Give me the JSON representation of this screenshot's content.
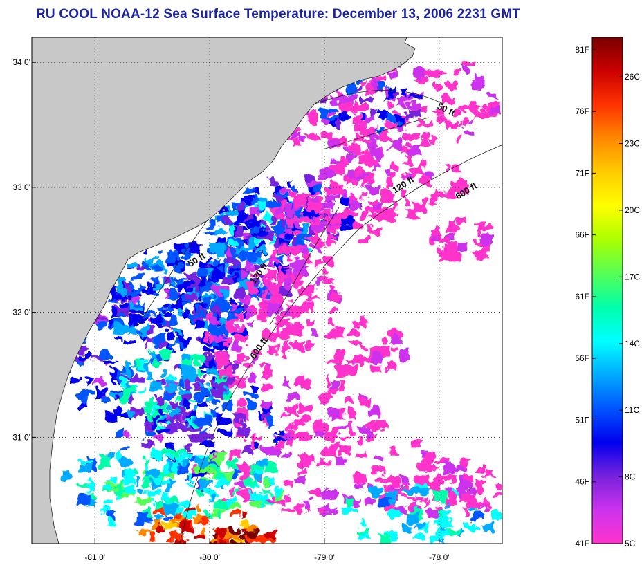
{
  "title": "RU COOL  NOAA-12  Sea Surface Temperature:  December 13, 2006 2231 GMT",
  "map": {
    "lon_range": [
      -81.55,
      -77.45
    ],
    "lat_range": [
      30.15,
      34.2
    ],
    "lat_ticks": [
      {
        "value": 34,
        "label": "34 0'"
      },
      {
        "value": 33,
        "label": "33 0'"
      },
      {
        "value": 32,
        "label": "32 0'"
      },
      {
        "value": 31,
        "label": "31 0'"
      }
    ],
    "lon_ticks": [
      {
        "value": -81,
        "label": "-81 0'"
      },
      {
        "value": -80,
        "label": "-80 0'"
      },
      {
        "value": -79,
        "label": "-79 0'"
      },
      {
        "value": -78,
        "label": "-78 0'"
      }
    ],
    "land_color": "#c8c8c8",
    "ocean_nodata_color": "#ffffff",
    "contours": [
      {
        "label": "50 ft",
        "label_lon": -77.95,
        "label_lat": 33.6,
        "label_angle": 25
      },
      {
        "label": "120 ft",
        "label_lon": -78.3,
        "label_lat": 33.0,
        "label_angle": -32
      },
      {
        "label": "600 ft",
        "label_lon": -77.75,
        "label_lat": 32.95,
        "label_angle": -32
      },
      {
        "label": "50 ft",
        "label_lon": -80.1,
        "label_lat": 32.4,
        "label_angle": -32
      },
      {
        "label": "120 ft",
        "label_lon": -79.55,
        "label_lat": 32.3,
        "label_angle": -55
      },
      {
        "label": "600 ft",
        "label_lon": -79.55,
        "label_lat": 31.7,
        "label_angle": -55
      }
    ]
  },
  "colorbar": {
    "fahrenheit_labels": [
      "81F",
      "76F",
      "71F",
      "66F",
      "61F",
      "56F",
      "51F",
      "46F",
      "41F"
    ],
    "celsius_labels": [
      "26C",
      "23C",
      "20C",
      "17C",
      "14C",
      "11C",
      "8C",
      "5C"
    ],
    "celsius_values": [
      26,
      23,
      20,
      17,
      14,
      11,
      8,
      5
    ],
    "range_f": [
      41,
      82
    ],
    "colors": [
      "#ff33cc",
      "#cc33ee",
      "#7722dd",
      "#0000ee",
      "#0055ff",
      "#00aaff",
      "#00ffff",
      "#00ffaa",
      "#55ff55",
      "#aaff00",
      "#ffff00",
      "#ffcc00",
      "#ff8800",
      "#ff3300",
      "#cc0000",
      "#7a0000"
    ]
  }
}
